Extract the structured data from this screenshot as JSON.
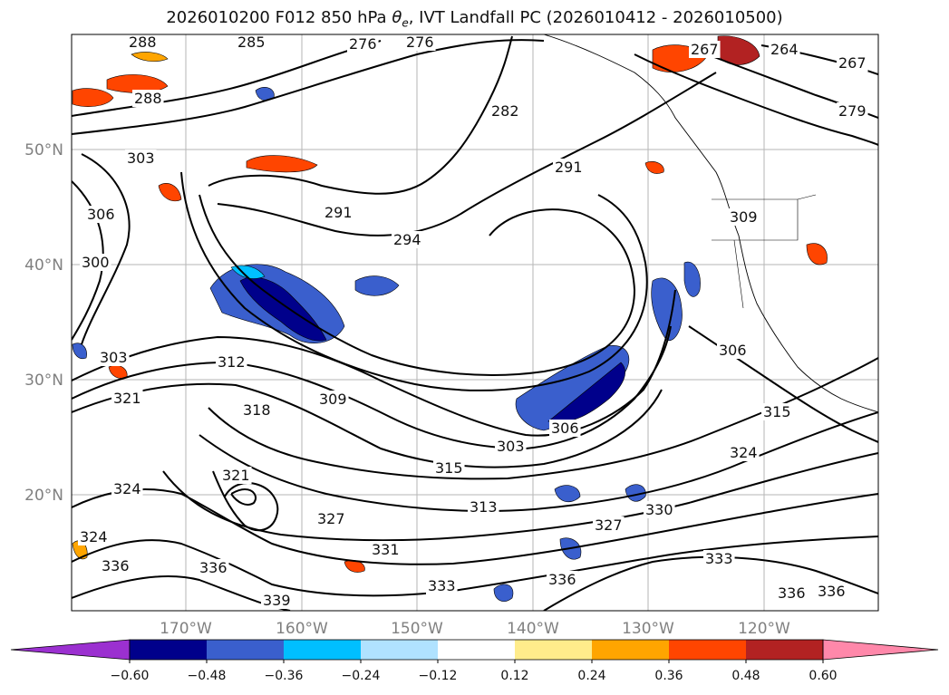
{
  "title": {
    "prefix": "2026010200 F012 850 hPa ",
    "theta_symbol": "θ",
    "theta_sub": "e",
    "suffix": ", IVT Landfall PC (2026010412 - 2026010500)"
  },
  "lat_labels": [
    "50°N",
    "40°N",
    "30°N",
    "20°N"
  ],
  "lon_labels": [
    "170°W",
    "160°W",
    "150°W",
    "140°W",
    "130°W",
    "120°W"
  ],
  "contour_labels": [
    "288",
    "285",
    "276",
    "276",
    "288",
    "282",
    "267",
    "264",
    "267",
    "279",
    "291",
    "294",
    "291",
    "303",
    "306",
    "300",
    "309",
    "306",
    "303",
    "312",
    "321",
    "318",
    "309",
    "306",
    "303",
    "315",
    "313",
    "324",
    "327",
    "330",
    "315",
    "324",
    "321",
    "324",
    "336",
    "327",
    "331",
    "333",
    "336",
    "339",
    "336",
    "333",
    "336",
    "336"
  ],
  "colorbar": {
    "ticks": [
      "−0.60",
      "−0.48",
      "−0.36",
      "−0.24",
      "−0.12",
      "0.12",
      "0.24",
      "0.36",
      "0.48",
      "0.60"
    ],
    "colors": [
      "#9b30d0",
      "#00008b",
      "#3a5fcd",
      "#00bfff",
      "#b0e2ff",
      "#ffffff",
      "#ffec8b",
      "#ffa500",
      "#ff4500",
      "#b22222",
      "#ff88aa"
    ]
  }
}
